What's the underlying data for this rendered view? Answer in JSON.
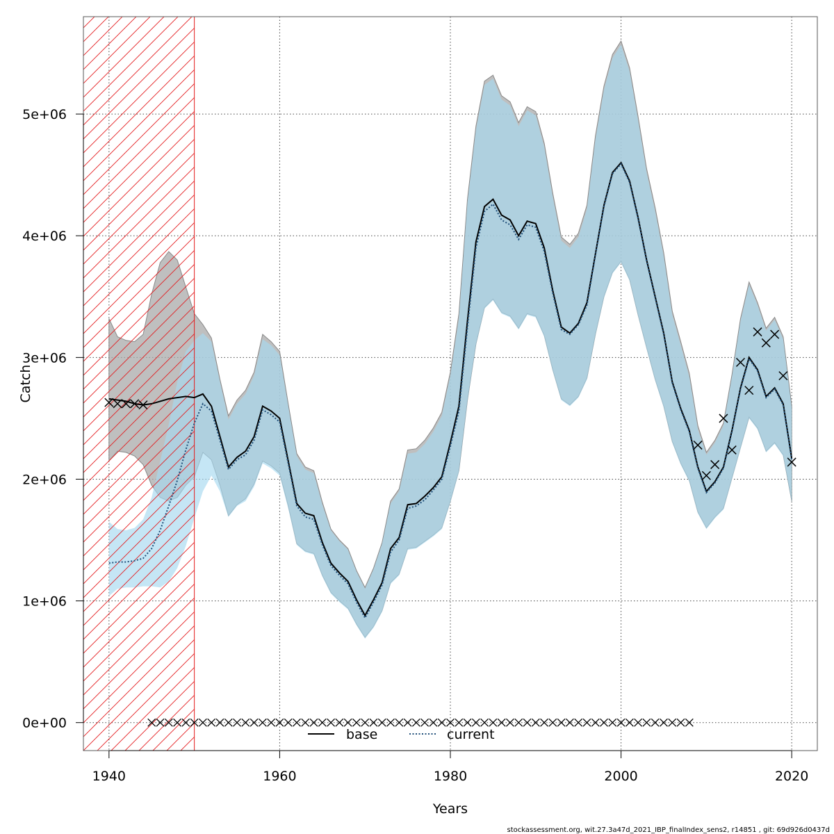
{
  "chart_data": {
    "type": "line",
    "xlabel": "Years",
    "ylabel": "Catch",
    "xlim": [
      1937,
      2023
    ],
    "ylim": [
      -230000,
      5800000
    ],
    "x_ticks": [
      1940,
      1960,
      1980,
      2000,
      2020
    ],
    "x_tick_labels": [
      "1940",
      "1960",
      "1980",
      "2000",
      "2020"
    ],
    "y_ticks": [
      0,
      1000000,
      2000000,
      3000000,
      4000000,
      5000000
    ],
    "y_tick_labels": [
      "0e+00",
      "1e+06",
      "2e+06",
      "3e+06",
      "4e+06",
      "5e+06"
    ],
    "grid": true,
    "legend_position": "bottom-center",
    "legend": [
      {
        "label": "base",
        "style": "solid",
        "color": "#000000"
      },
      {
        "label": "current",
        "style": "dotted",
        "color": "#1f4e79"
      }
    ],
    "hatched_region": {
      "from": 1937,
      "to": 1950,
      "color": "#e31a1c"
    },
    "years": [
      1940,
      1941,
      1942,
      1943,
      1944,
      1945,
      1946,
      1947,
      1948,
      1949,
      1950,
      1951,
      1952,
      1953,
      1954,
      1955,
      1956,
      1957,
      1958,
      1959,
      1960,
      1961,
      1962,
      1963,
      1964,
      1965,
      1966,
      1967,
      1968,
      1969,
      1970,
      1971,
      1972,
      1973,
      1974,
      1975,
      1976,
      1977,
      1978,
      1979,
      1980,
      1981,
      1982,
      1983,
      1984,
      1985,
      1986,
      1987,
      1988,
      1989,
      1990,
      1991,
      1992,
      1993,
      1994,
      1995,
      1996,
      1997,
      1998,
      1999,
      2000,
      2001,
      2002,
      2003,
      2004,
      2005,
      2006,
      2007,
      2008,
      2009,
      2010,
      2011,
      2012,
      2013,
      2014,
      2015,
      2016,
      2017,
      2018,
      2019,
      2020
    ],
    "series": [
      {
        "name": "base",
        "values": [
          2660000,
          2650000,
          2640000,
          2620000,
          2610000,
          2620000,
          2640000,
          2660000,
          2670000,
          2680000,
          2670000,
          2700000,
          2600000,
          2350000,
          2100000,
          2180000,
          2230000,
          2350000,
          2600000,
          2560000,
          2500000,
          2150000,
          1800000,
          1720000,
          1700000,
          1480000,
          1310000,
          1230000,
          1160000,
          1010000,
          880000,
          1010000,
          1150000,
          1430000,
          1520000,
          1790000,
          1800000,
          1860000,
          1930000,
          2020000,
          2300000,
          2600000,
          3300000,
          3950000,
          4240000,
          4300000,
          4170000,
          4130000,
          4000000,
          4120000,
          4100000,
          3900000,
          3550000,
          3250000,
          3200000,
          3280000,
          3450000,
          3850000,
          4250000,
          4520000,
          4600000,
          4450000,
          4150000,
          3800000,
          3500000,
          3200000,
          2800000,
          2580000,
          2400000,
          2100000,
          1900000,
          1980000,
          2100000,
          2400000,
          2750000,
          3000000,
          2900000,
          2680000,
          2750000,
          2620000,
          2170000
        ],
        "lower": [
          2150000,
          2230000,
          2220000,
          2190000,
          2120000,
          1950000,
          1850000,
          1820000,
          1850000,
          1950000,
          2020000,
          2220000,
          2160000,
          1950000,
          1700000,
          1790000,
          1840000,
          1960000,
          2150000,
          2110000,
          2050000,
          1780000,
          1470000,
          1410000,
          1390000,
          1210000,
          1070000,
          1000000,
          940000,
          810000,
          700000,
          790000,
          920000,
          1150000,
          1220000,
          1430000,
          1440000,
          1490000,
          1540000,
          1600000,
          1820000,
          2070000,
          2650000,
          3110000,
          3410000,
          3480000,
          3370000,
          3340000,
          3240000,
          3360000,
          3340000,
          3180000,
          2900000,
          2660000,
          2610000,
          2680000,
          2830000,
          3190000,
          3500000,
          3700000,
          3790000,
          3640000,
          3350000,
          3080000,
          2820000,
          2600000,
          2310000,
          2130000,
          1990000,
          1730000,
          1600000,
          1690000,
          1760000,
          2010000,
          2260000,
          2510000,
          2420000,
          2230000,
          2300000,
          2200000,
          1820000
        ],
        "upper": [
          3320000,
          3170000,
          3140000,
          3130000,
          3190000,
          3520000,
          3780000,
          3870000,
          3800000,
          3580000,
          3360000,
          3270000,
          3160000,
          2820000,
          2520000,
          2650000,
          2730000,
          2880000,
          3190000,
          3130000,
          3050000,
          2620000,
          2210000,
          2100000,
          2070000,
          1810000,
          1590000,
          1500000,
          1430000,
          1250000,
          1110000,
          1270000,
          1480000,
          1820000,
          1920000,
          2240000,
          2250000,
          2320000,
          2420000,
          2550000,
          2880000,
          3360000,
          4300000,
          4900000,
          5270000,
          5320000,
          5150000,
          5100000,
          4930000,
          5060000,
          5020000,
          4760000,
          4350000,
          3990000,
          3930000,
          4020000,
          4250000,
          4820000,
          5230000,
          5490000,
          5600000,
          5380000,
          4980000,
          4550000,
          4230000,
          3860000,
          3380000,
          3130000,
          2870000,
          2440000,
          2220000,
          2320000,
          2460000,
          2860000,
          3320000,
          3620000,
          3450000,
          3240000,
          3330000,
          3170000,
          2600000
        ]
      },
      {
        "name": "current",
        "values": [
          1310000,
          1320000,
          1320000,
          1330000,
          1350000,
          1430000,
          1580000,
          1780000,
          1990000,
          2240000,
          2460000,
          2620000,
          2560000,
          2320000,
          2080000,
          2160000,
          2200000,
          2320000,
          2570000,
          2530000,
          2470000,
          2130000,
          1780000,
          1690000,
          1670000,
          1460000,
          1290000,
          1210000,
          1140000,
          990000,
          860000,
          990000,
          1130000,
          1400000,
          1500000,
          1760000,
          1780000,
          1830000,
          1910000,
          2000000,
          2270000,
          2560000,
          3250000,
          3900000,
          4200000,
          4260000,
          4130000,
          4090000,
          3970000,
          4090000,
          4070000,
          3870000,
          3530000,
          3230000,
          3190000,
          3270000,
          3430000,
          3840000,
          4240000,
          4510000,
          4590000,
          4440000,
          4140000,
          3790000,
          3490000,
          3190000,
          2790000,
          2570000,
          2390000,
          2090000,
          1890000,
          1970000,
          2090000,
          2390000,
          2740000,
          2990000,
          2890000,
          2670000,
          2740000,
          2610000,
          2160000
        ],
        "lower": [
          1040000,
          1100000,
          1110000,
          1110000,
          1120000,
          1120000,
          1110000,
          1160000,
          1270000,
          1450000,
          1680000,
          1900000,
          2030000,
          1900000,
          1690000,
          1780000,
          1820000,
          1940000,
          2130000,
          2090000,
          2030000,
          1760000,
          1460000,
          1400000,
          1380000,
          1200000,
          1060000,
          990000,
          930000,
          800000,
          690000,
          780000,
          910000,
          1140000,
          1210000,
          1420000,
          1430000,
          1480000,
          1530000,
          1590000,
          1810000,
          2060000,
          2640000,
          3100000,
          3400000,
          3470000,
          3360000,
          3330000,
          3230000,
          3350000,
          3330000,
          3170000,
          2890000,
          2650000,
          2600000,
          2670000,
          2820000,
          3180000,
          3490000,
          3690000,
          3780000,
          3630000,
          3340000,
          3070000,
          2810000,
          2590000,
          2300000,
          2120000,
          1980000,
          1720000,
          1590000,
          1680000,
          1750000,
          2000000,
          2250000,
          2500000,
          2410000,
          2220000,
          2290000,
          2190000,
          1810000
        ],
        "upper": [
          1650000,
          1590000,
          1580000,
          1600000,
          1670000,
          1850000,
          2150000,
          2450000,
          2800000,
          3050000,
          3140000,
          3200000,
          3130000,
          2800000,
          2490000,
          2620000,
          2700000,
          2850000,
          3150000,
          3100000,
          3020000,
          2600000,
          2190000,
          2080000,
          2050000,
          1790000,
          1580000,
          1490000,
          1420000,
          1240000,
          1100000,
          1260000,
          1470000,
          1800000,
          1900000,
          2210000,
          2220000,
          2290000,
          2390000,
          2520000,
          2850000,
          3320000,
          4270000,
          4870000,
          5240000,
          5290000,
          5120000,
          5070000,
          4900000,
          5030000,
          4990000,
          4730000,
          4320000,
          3960000,
          3900000,
          3990000,
          4220000,
          4790000,
          5200000,
          5460000,
          5570000,
          5350000,
          4950000,
          4520000,
          4200000,
          3830000,
          3350000,
          3100000,
          2840000,
          2410000,
          2200000,
          2300000,
          2440000,
          2840000,
          3300000,
          3600000,
          3430000,
          3220000,
          3310000,
          3150000,
          2580000
        ]
      }
    ],
    "observed_catch": {
      "x": [
        1940,
        1941,
        1942,
        1943,
        1944,
        2009,
        2010,
        2011,
        2012,
        2013,
        2014,
        2015,
        2016,
        2017,
        2018,
        2019,
        2020
      ],
      "y": [
        2630000,
        2620000,
        2620000,
        2620000,
        2610000,
        2280000,
        2030000,
        2120000,
        2500000,
        2240000,
        2960000,
        2730000,
        3210000,
        3120000,
        3190000,
        2850000,
        2140000
      ]
    },
    "zero_catch_years": [
      1945,
      1946,
      1947,
      1948,
      1949,
      1950,
      1951,
      1952,
      1953,
      1954,
      1955,
      1956,
      1957,
      1958,
      1959,
      1960,
      1961,
      1962,
      1963,
      1964,
      1965,
      1966,
      1967,
      1968,
      1969,
      1970,
      1971,
      1972,
      1973,
      1974,
      1975,
      1976,
      1977,
      1978,
      1979,
      1980,
      1981,
      1982,
      1983,
      1984,
      1985,
      1986,
      1987,
      1988,
      1989,
      1990,
      1991,
      1992,
      1993,
      1994,
      1995,
      1996,
      1997,
      1998,
      1999,
      2000,
      2001,
      2002,
      2003,
      2004,
      2005,
      2006,
      2007,
      2008
    ],
    "colors": {
      "base_band": "#aaaaaa",
      "current_band": "#a6d8f0",
      "overlap_band": "#a3c4d6",
      "hatch": "#e31a1c"
    }
  },
  "footer": "stockassessment.org, wit.27.3a47d_2021_IBP_finalIndex_sens2, r14851 , git: 69d926d0437d"
}
